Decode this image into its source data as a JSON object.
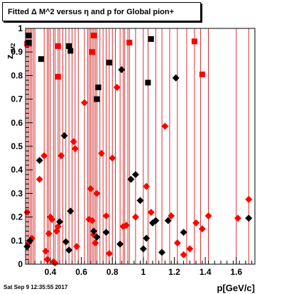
{
  "title": "Fitted Δ M^2 versus η and p for Global pion+",
  "timestamp": "Sat Sep  9 12:35:55 2017",
  "chart_data": {
    "type": "scatter",
    "title": "Fitted Δ M^2 versus η and p for Global pion+",
    "xlabel": "p[GeV/c]",
    "ylabel": "z",
    "ylabel_sub": "dM2",
    "xlim": [
      0.24,
      1.72
    ],
    "ylim": [
      0,
      1.0
    ],
    "xticks": [
      {
        "v": 0.4,
        "label": "0.4"
      },
      {
        "v": 0.6,
        "label": "0.6"
      },
      {
        "v": 0.8,
        "label": "0.8"
      },
      {
        "v": 1.0,
        "label": "1"
      },
      {
        "v": 1.2,
        "label": "1.2"
      },
      {
        "v": 1.4,
        "label": "1.4"
      },
      {
        "v": 1.6,
        "label": "1.6"
      }
    ],
    "yticks": [
      {
        "v": 0.0,
        "label": "0"
      },
      {
        "v": 0.1,
        "label": "0.1"
      },
      {
        "v": 0.2,
        "label": "0.2"
      },
      {
        "v": 0.3,
        "label": "0.3"
      },
      {
        "v": 0.4,
        "label": "0.4"
      },
      {
        "v": 0.5,
        "label": "0.5"
      },
      {
        "v": 0.6,
        "label": "0.6"
      },
      {
        "v": 0.7,
        "label": "0.7"
      },
      {
        "v": 0.8,
        "label": "0.8"
      },
      {
        "v": 0.9,
        "label": "0.9"
      },
      {
        "v": 1.0,
        "label": "1"
      }
    ],
    "marker_colors": {
      "red": "#ff0000",
      "black": "#000000"
    },
    "vertical_lines_color": "#cc0000",
    "vertical_lines_x": [
      0.25,
      0.26,
      0.27,
      0.28,
      0.29,
      0.3,
      0.36,
      0.38,
      0.39,
      0.4,
      0.42,
      0.43,
      0.45,
      0.46,
      0.48,
      0.5,
      0.52,
      0.54,
      0.56,
      0.58,
      0.62,
      0.64,
      0.65,
      0.66,
      0.67,
      0.68,
      0.69,
      0.7,
      0.72,
      0.74,
      0.76,
      0.78,
      0.8,
      0.82,
      0.85,
      0.87,
      0.88,
      0.9,
      0.91,
      0.95,
      1.0,
      1.03,
      1.08,
      1.12,
      1.17,
      1.22,
      1.28,
      1.33,
      1.37,
      1.42,
      1.6,
      1.68
    ],
    "series": [
      {
        "marker": "square",
        "color": "red",
        "points": [
          [
            0.25,
            0.935
          ],
          [
            0.26,
            0.935
          ],
          [
            0.45,
            0.925
          ],
          [
            0.45,
            0.795
          ],
          [
            0.68,
            0.97
          ],
          [
            0.67,
            0.9
          ],
          [
            0.91,
            0.94
          ],
          [
            1.33,
            0.945
          ],
          [
            1.38,
            0.805
          ]
        ]
      },
      {
        "marker": "square",
        "color": "black",
        "points": [
          [
            0.26,
            0.97
          ],
          [
            0.26,
            0.94
          ],
          [
            0.34,
            0.87
          ],
          [
            0.52,
            0.925
          ],
          [
            0.53,
            0.905
          ],
          [
            0.7,
            0.7
          ],
          [
            0.71,
            0.75
          ],
          [
            0.78,
            0.855
          ],
          [
            1.03,
            0.77
          ],
          [
            1.05,
            0.955
          ]
        ]
      },
      {
        "marker": "diamond",
        "color": "red",
        "points": [
          [
            0.25,
            0.22
          ],
          [
            0.26,
            0.09
          ],
          [
            0.27,
            0.1
          ],
          [
            0.28,
            0.11
          ],
          [
            0.36,
            0.46
          ],
          [
            0.33,
            0.36
          ],
          [
            0.37,
            0.055
          ],
          [
            0.38,
            0.02
          ],
          [
            0.39,
            0.13
          ],
          [
            0.4,
            0.2
          ],
          [
            0.41,
            0.19
          ],
          [
            0.42,
            0.01
          ],
          [
            0.43,
            0.005
          ],
          [
            0.44,
            0.14
          ],
          [
            0.45,
            0.16
          ],
          [
            0.47,
            0.46
          ],
          [
            0.55,
            0.52
          ],
          [
            0.56,
            0.49
          ],
          [
            0.57,
            0.075
          ],
          [
            0.62,
            0.685
          ],
          [
            0.65,
            0.19
          ],
          [
            0.66,
            0.32
          ],
          [
            0.67,
            0.185
          ],
          [
            0.68,
            0.125
          ],
          [
            0.69,
            0.09
          ],
          [
            0.7,
            0.3
          ],
          [
            0.73,
            0.47
          ],
          [
            0.76,
            0.205
          ],
          [
            0.78,
            0.045
          ],
          [
            0.8,
            0.45
          ],
          [
            0.83,
            0.75
          ],
          [
            0.87,
            0.16
          ],
          [
            0.89,
            0.165
          ],
          [
            0.95,
            0.2
          ],
          [
            1.02,
            0.33
          ],
          [
            1.05,
            0.22
          ],
          [
            1.14,
            0.585
          ],
          [
            1.18,
            0.205
          ],
          [
            1.22,
            0.09
          ],
          [
            1.26,
            0.04
          ],
          [
            1.3,
            0.065
          ],
          [
            1.34,
            0.175
          ],
          [
            1.38,
            0.15
          ],
          [
            1.42,
            0.205
          ],
          [
            1.61,
            0.195
          ],
          [
            1.68,
            0.275
          ]
        ]
      },
      {
        "marker": "diamond",
        "color": "black",
        "points": [
          [
            0.25,
            0.075
          ],
          [
            0.27,
            0.1
          ],
          [
            0.33,
            0.44
          ],
          [
            0.46,
            0.18
          ],
          [
            0.49,
            0.545
          ],
          [
            0.5,
            0.095
          ],
          [
            0.52,
            0.06
          ],
          [
            0.53,
            0.225
          ],
          [
            0.68,
            0.14
          ],
          [
            0.7,
            0.115
          ],
          [
            0.76,
            0.135
          ],
          [
            0.85,
            0.085
          ],
          [
            0.86,
            0.825
          ],
          [
            0.92,
            0.36
          ],
          [
            0.95,
            0.38
          ],
          [
            0.98,
            0.27
          ],
          [
            1.0,
            0.065
          ],
          [
            1.02,
            0.11
          ],
          [
            1.06,
            0.175
          ],
          [
            1.08,
            0.185
          ],
          [
            1.12,
            0.05
          ],
          [
            1.16,
            0.185
          ],
          [
            1.21,
            0.79
          ],
          [
            1.26,
            0.135
          ],
          [
            1.68,
            0.195
          ]
        ]
      }
    ]
  }
}
